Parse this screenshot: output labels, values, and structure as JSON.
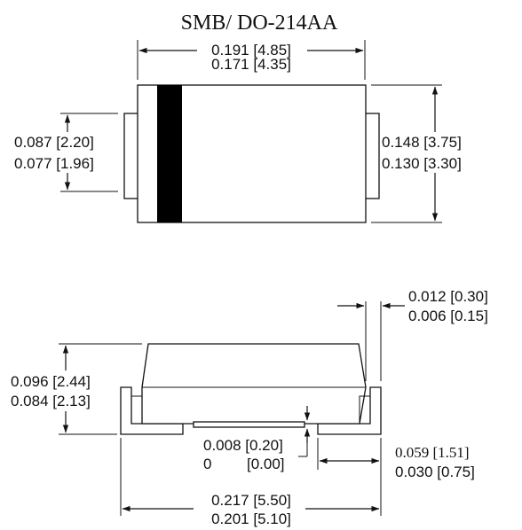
{
  "title": "SMB/ DO-214AA",
  "top_view": {
    "body_length_max": "0.191 [4.85]",
    "body_length_min": "0.171 [4.35]",
    "lead_width_max": "0.087 [2.20]",
    "lead_width_min": "0.077 [1.96]",
    "body_width_max": "0.148 [3.75]",
    "body_width_min": "0.130 [3.30]"
  },
  "side_view": {
    "lead_thickness_max": "0.012 [0.30]",
    "lead_thickness_min": "0.006 [0.15]",
    "height_max": "0.096 [2.44]",
    "height_min": "0.084 [2.13]",
    "standoff_max": "0.008 [0.20]",
    "standoff_min_inch": "0",
    "standoff_min_mm": "[0.00]",
    "lead_length_max": "0.059 [1.51]",
    "lead_length_min": "0.030 [0.75]",
    "overall_length_max": "0.217 [5.50]",
    "overall_length_min": "0.201 [5.10]"
  }
}
